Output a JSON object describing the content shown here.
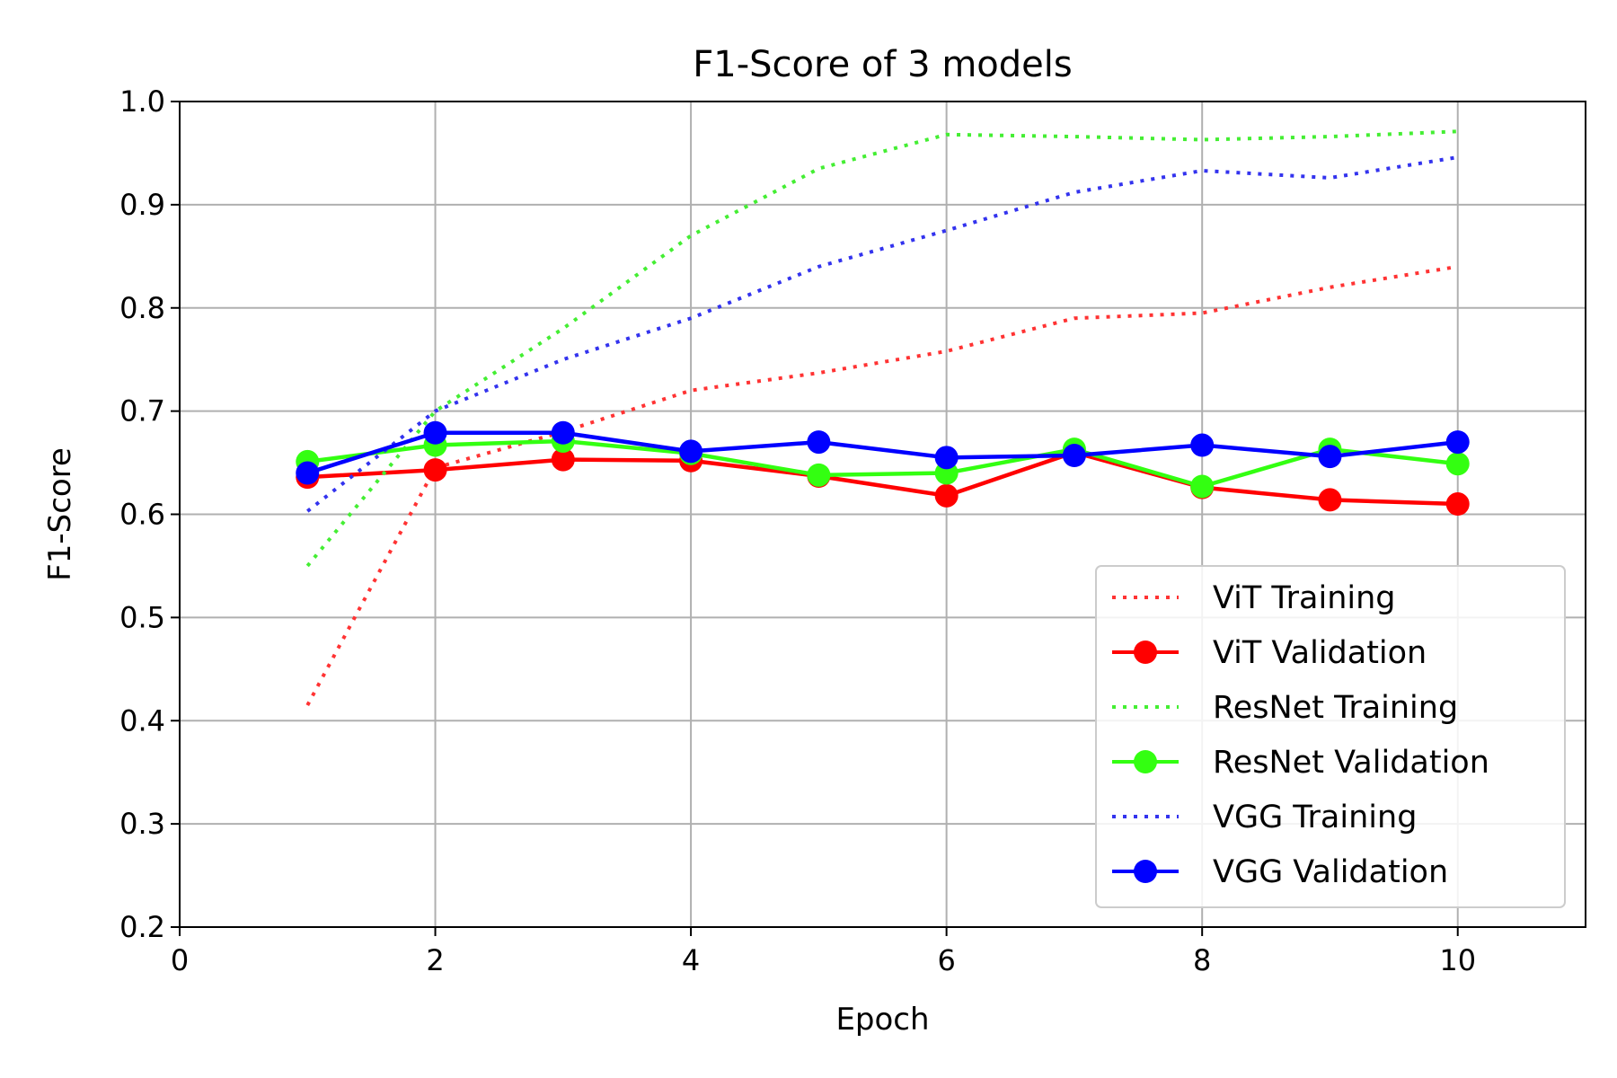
{
  "chart_data": {
    "type": "line",
    "title": "F1-Score of 3 models",
    "xlabel": "Epoch",
    "ylabel": "F1-Score",
    "xlim": [
      0,
      11
    ],
    "ylim": [
      0.2,
      1.0
    ],
    "x_ticks": [
      "0",
      "2",
      "4",
      "6",
      "8",
      "10"
    ],
    "y_ticks": [
      "0.2",
      "0.3",
      "0.4",
      "0.5",
      "0.6",
      "0.7",
      "0.8",
      "0.9",
      "1.0"
    ],
    "grid": true,
    "legend_position": "lower-right",
    "x": [
      1,
      2,
      3,
      4,
      5,
      6,
      7,
      8,
      9,
      10
    ],
    "series": [
      {
        "name": "ViT Training",
        "style": "dotted",
        "markers": false,
        "color": "#ff3333",
        "values": [
          0.415,
          0.645,
          0.68,
          0.72,
          0.737,
          0.758,
          0.79,
          0.795,
          0.82,
          0.84
        ]
      },
      {
        "name": "ViT Validation",
        "style": "solid",
        "markers": true,
        "color": "#ff0000",
        "values": [
          0.636,
          0.643,
          0.653,
          0.652,
          0.637,
          0.618,
          0.66,
          0.626,
          0.614,
          0.61
        ]
      },
      {
        "name": "ResNet Training",
        "style": "dotted",
        "markers": false,
        "color": "#44ee33",
        "values": [
          0.55,
          0.7,
          0.78,
          0.87,
          0.935,
          0.968,
          0.966,
          0.963,
          0.966,
          0.971
        ]
      },
      {
        "name": "ResNet Validation",
        "style": "solid",
        "markers": true,
        "color": "#33ff11",
        "values": [
          0.651,
          0.667,
          0.671,
          0.659,
          0.638,
          0.64,
          0.663,
          0.627,
          0.663,
          0.649
        ]
      },
      {
        "name": "VGG Training",
        "style": "dotted",
        "markers": false,
        "color": "#3333ee",
        "values": [
          0.603,
          0.7,
          0.75,
          0.79,
          0.84,
          0.875,
          0.912,
          0.933,
          0.926,
          0.946
        ]
      },
      {
        "name": "VGG Validation",
        "style": "solid",
        "markers": true,
        "color": "#0000ff",
        "values": [
          0.64,
          0.679,
          0.679,
          0.661,
          0.67,
          0.655,
          0.657,
          0.667,
          0.656,
          0.67
        ]
      }
    ]
  }
}
